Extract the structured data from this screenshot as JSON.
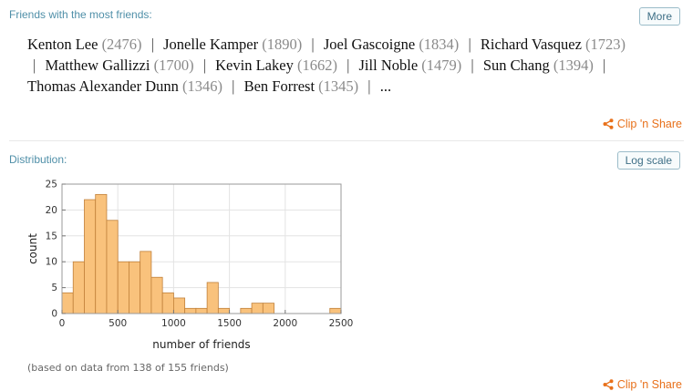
{
  "friends_pod": {
    "title": "Friends with the most friends:",
    "more_label": "More",
    "people": [
      {
        "name": "Kenton Lee",
        "count": "(2476)"
      },
      {
        "name": "Jonelle Kamper",
        "count": "(1890)"
      },
      {
        "name": "Joel Gascoigne",
        "count": "(1834)"
      },
      {
        "name": "Richard Vasquez",
        "count": "(1723)"
      },
      {
        "name": "Matthew Gallizzi",
        "count": "(1700)"
      },
      {
        "name": "Kevin Lakey",
        "count": "(1662)"
      },
      {
        "name": "Jill Noble",
        "count": "(1479)"
      },
      {
        "name": "Sun Chang",
        "count": "(1394)"
      },
      {
        "name": "Thomas Alexander Dunn",
        "count": "(1346)"
      },
      {
        "name": "Ben Forrest",
        "count": "(1345)"
      }
    ],
    "ellipsis": "...",
    "clip_label": "Clip 'n Share"
  },
  "distribution_pod": {
    "title": "Distribution:",
    "log_scale_label": "Log scale",
    "note": "(based on data from 138 of 155 friends)",
    "clip_label": "Clip 'n Share"
  },
  "colors": {
    "bar_fill": "#f9c27c",
    "bar_stroke": "#c0803a",
    "accent": "#e8701a",
    "title": "#4f8fa8"
  },
  "chart_data": {
    "type": "bar",
    "xlabel": "number of friends",
    "ylabel": "count",
    "xlim": [
      0,
      2500
    ],
    "ylim": [
      0,
      25
    ],
    "xticks": [
      0,
      500,
      1000,
      1500,
      2000,
      2500
    ],
    "yticks": [
      0,
      5,
      10,
      15,
      20,
      25
    ],
    "bin_width": 100,
    "bins": [
      {
        "x0": 0,
        "x1": 100,
        "count": 4
      },
      {
        "x0": 100,
        "x1": 200,
        "count": 10
      },
      {
        "x0": 200,
        "x1": 300,
        "count": 22
      },
      {
        "x0": 300,
        "x1": 400,
        "count": 23
      },
      {
        "x0": 400,
        "x1": 500,
        "count": 18
      },
      {
        "x0": 500,
        "x1": 600,
        "count": 10
      },
      {
        "x0": 600,
        "x1": 700,
        "count": 10
      },
      {
        "x0": 700,
        "x1": 800,
        "count": 12
      },
      {
        "x0": 800,
        "x1": 900,
        "count": 7
      },
      {
        "x0": 900,
        "x1": 1000,
        "count": 4
      },
      {
        "x0": 1000,
        "x1": 1100,
        "count": 3
      },
      {
        "x0": 1100,
        "x1": 1200,
        "count": 1
      },
      {
        "x0": 1200,
        "x1": 1300,
        "count": 1
      },
      {
        "x0": 1300,
        "x1": 1400,
        "count": 6
      },
      {
        "x0": 1400,
        "x1": 1500,
        "count": 1
      },
      {
        "x0": 1500,
        "x1": 1600,
        "count": 0
      },
      {
        "x0": 1600,
        "x1": 1700,
        "count": 1
      },
      {
        "x0": 1700,
        "x1": 1800,
        "count": 2
      },
      {
        "x0": 1800,
        "x1": 1900,
        "count": 2
      },
      {
        "x0": 1900,
        "x1": 2000,
        "count": 0
      },
      {
        "x0": 2000,
        "x1": 2100,
        "count": 0
      },
      {
        "x0": 2100,
        "x1": 2200,
        "count": 0
      },
      {
        "x0": 2200,
        "x1": 2300,
        "count": 0
      },
      {
        "x0": 2300,
        "x1": 2400,
        "count": 0
      },
      {
        "x0": 2400,
        "x1": 2500,
        "count": 1
      }
    ],
    "grid": true
  }
}
